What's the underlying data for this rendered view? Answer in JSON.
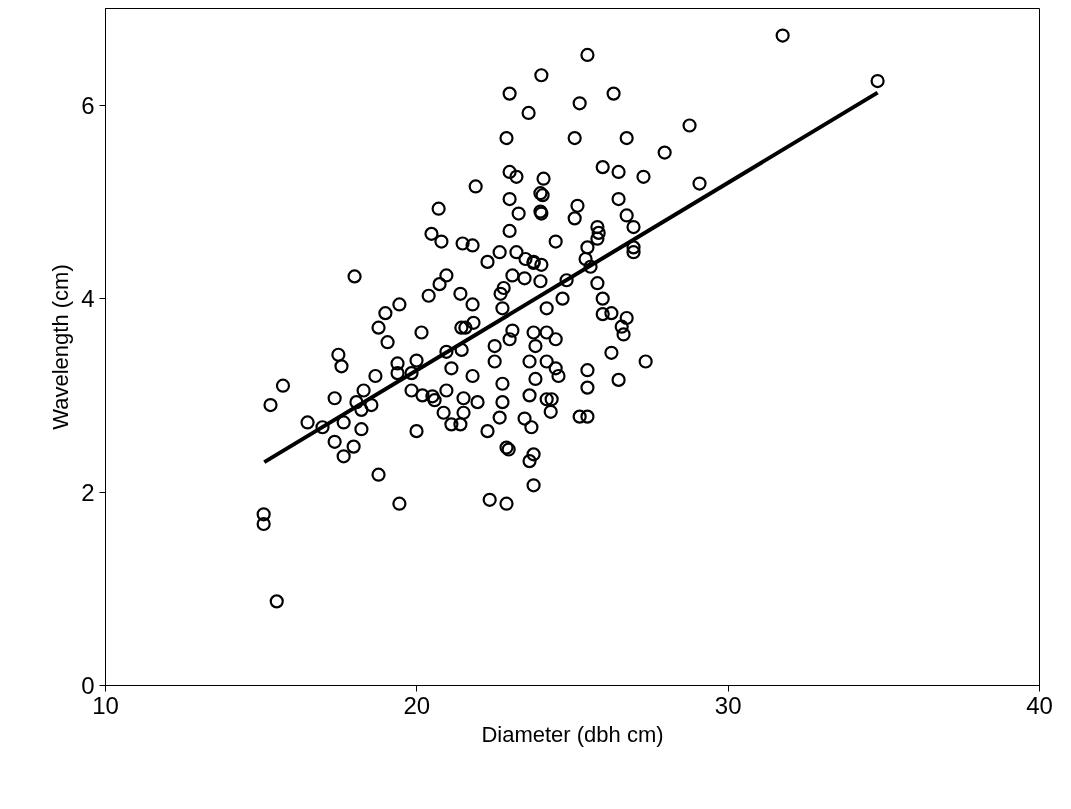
{
  "chart_data": {
    "type": "scatter",
    "xlabel": "Diameter (dbh cm)",
    "ylabel": "Wavelength (cm)",
    "xlim": [
      10,
      40
    ],
    "ylim": [
      0,
      7
    ],
    "xticks": [
      10,
      20,
      30,
      40
    ],
    "yticks": [
      0,
      2,
      4,
      6
    ],
    "grid": false,
    "marker": "circle",
    "series": [
      {
        "color": "#000000",
        "x": [
          15.08,
          15.08,
          15.5,
          15.3,
          15.7,
          16.49,
          16.97,
          17.36,
          17.36,
          17.48,
          17.58,
          17.65,
          17.65,
          17.97,
          18.06,
          18.22,
          18.22,
          18.29,
          18.54,
          18.67,
          18.77,
          18.77,
          18.99,
          19.06,
          19.44,
          19.38,
          19.38,
          19.44,
          19.83,
          19.83,
          19.99,
          20.15,
          19.99,
          20.18,
          20.5,
          20.57,
          20.86,
          20.95,
          20.95,
          21.11,
          21.11,
          21.4,
          21.5,
          21.5,
          21.44,
          21.79,
          21.95,
          22.27,
          22.34,
          22.66,
          22.75,
          22.75,
          22.5,
          22.5,
          22.88,
          22.95,
          22.88,
          23.07,
          22.98,
          23.62,
          23.68,
          23.46,
          23.75,
          23.62,
          23.75,
          23.62,
          23.75,
          23.81,
          23.81,
          21.79,
          22.75,
          21.43,
          21.56,
          21.82,
          24.17,
          24.46,
          24.17,
          24.46,
          24.55,
          25.48,
          25.48,
          24.17,
          24.33,
          24.3,
          25.23,
          25.48,
          26.25,
          27.35,
          26.48,
          25.8,
          25.97,
          25.97,
          26.25,
          26.74,
          26.58,
          26.64,
          24.81,
          24.68,
          24.17,
          25.42,
          25.58,
          23.97,
          24.0,
          23.46,
          23.75,
          26.96,
          23.07,
          22.79,
          22.69,
          21.4,
          20.38,
          20.73,
          20.95,
          22.27,
          22.66,
          23.2,
          23.49,
          23.75,
          20.79,
          21.47,
          21.79,
          24.46,
          25.48,
          24.0,
          22.98,
          26.32,
          25.23,
          23.59,
          22.88,
          25.07,
          26.74,
          28.76,
          27.96,
          29.08,
          25.97,
          26.48,
          27.28,
          22.98,
          23.2,
          24.07,
          21.89,
          23.97,
          24.04,
          22.98,
          26.48,
          25.16,
          25.07,
          23.97,
          24.0,
          23.27,
          20.7,
          26.74,
          26.96,
          25.8,
          25.84,
          25.8,
          26.96,
          25.48,
          22.98,
          20.47,
          18.0,
          31.75,
          34.8
        ],
        "values": [
          1.77,
          1.67,
          0.87,
          2.9,
          3.1,
          2.72,
          2.67,
          2.97,
          2.52,
          3.42,
          3.3,
          2.72,
          2.37,
          2.47,
          2.93,
          2.85,
          2.65,
          3.05,
          2.9,
          3.2,
          2.18,
          3.7,
          3.85,
          3.55,
          3.94,
          3.33,
          3.23,
          1.88,
          3.23,
          3.05,
          3.36,
          3.65,
          2.63,
          3.0,
          2.99,
          2.95,
          2.82,
          3.05,
          3.45,
          3.28,
          2.7,
          2.7,
          2.97,
          2.82,
          3.47,
          3.2,
          2.93,
          2.63,
          1.92,
          2.77,
          2.93,
          3.12,
          3.35,
          3.51,
          2.46,
          2.44,
          1.88,
          3.67,
          3.58,
          3.35,
          2.67,
          2.76,
          2.39,
          2.32,
          2.07,
          3.0,
          3.65,
          3.51,
          3.17,
          3.94,
          3.9,
          3.7,
          3.7,
          3.75,
          3.65,
          3.58,
          3.35,
          3.28,
          3.2,
          3.26,
          3.08,
          2.96,
          2.96,
          2.83,
          2.78,
          2.78,
          3.44,
          3.35,
          3.16,
          4.16,
          4.0,
          3.84,
          3.85,
          3.8,
          3.71,
          3.63,
          4.19,
          4.0,
          3.9,
          4.41,
          4.33,
          4.18,
          4.35,
          4.21,
          4.38,
          4.48,
          4.24,
          4.11,
          4.05,
          4.05,
          4.03,
          4.15,
          4.24,
          4.38,
          4.48,
          4.48,
          4.41,
          4.37,
          4.59,
          4.57,
          4.55,
          4.59,
          6.52,
          6.31,
          6.12,
          6.12,
          6.02,
          5.92,
          5.66,
          5.66,
          5.66,
          5.79,
          5.51,
          5.19,
          5.36,
          5.31,
          5.26,
          5.31,
          5.26,
          5.24,
          5.16,
          5.09,
          5.07,
          5.03,
          5.03,
          4.96,
          4.83,
          4.9,
          4.88,
          4.88,
          4.93,
          4.86,
          4.74,
          4.74,
          4.68,
          4.62,
          4.53,
          4.53,
          4.7,
          4.67,
          4.23,
          6.72,
          6.25
        ]
      },
      {
        "type": "line",
        "color": "#000000",
        "marker": "none",
        "line_style": "solid",
        "x": [
          15.1,
          34.8
        ],
        "values": [
          2.31,
          6.13
        ]
      }
    ]
  }
}
